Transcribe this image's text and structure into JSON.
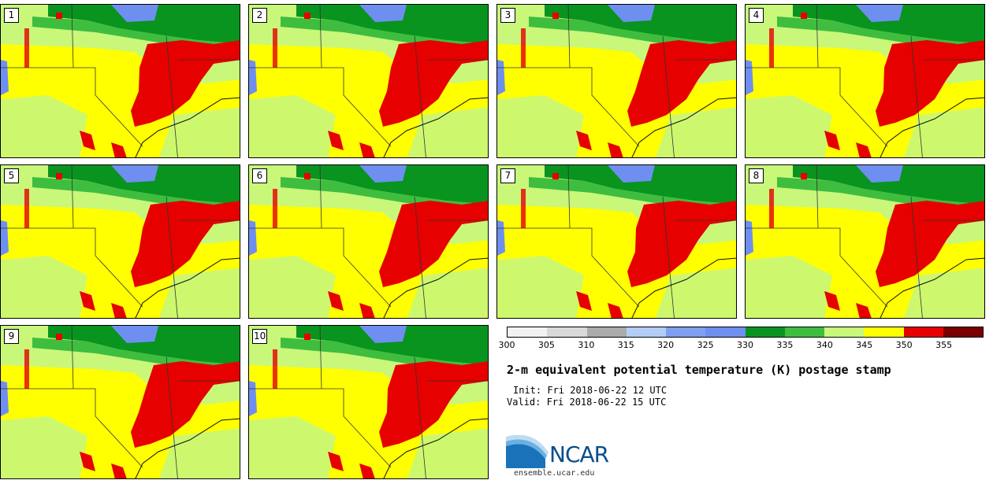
{
  "panels": [
    {
      "label": "1"
    },
    {
      "label": "2"
    },
    {
      "label": "3"
    },
    {
      "label": "4"
    },
    {
      "label": "5"
    },
    {
      "label": "6"
    },
    {
      "label": "7"
    },
    {
      "label": "8"
    },
    {
      "label": "9"
    },
    {
      "label": "10"
    }
  ],
  "colorbar": {
    "colors": [
      "#f2f2f2",
      "#d9d9d9",
      "#ababab",
      "#b4cdf7",
      "#7fa0ef",
      "#6f8ff0",
      "#08941f",
      "#3fbd3f",
      "#c8f77a",
      "#ffff00",
      "#e60000",
      "#7a0000"
    ],
    "ticks": [
      "300",
      "305",
      "310",
      "315",
      "320",
      "325",
      "330",
      "335",
      "340",
      "345",
      "350",
      "355"
    ]
  },
  "title": "2-m equivalent potential temperature (K) postage stamp",
  "init": "Init: Fri 2018-06-22 12 UTC",
  "valid": "Valid: Fri 2018-06-22 15 UTC",
  "logo_text": "NCAR",
  "url": "ensemble.ucar.edu",
  "legend_colors": {
    "light_green": "#c8f77a",
    "yellow": "#ffff00",
    "red": "#e60000",
    "green": "#08941f",
    "mid_green": "#3fbd3f",
    "blue": "#6f8ff0"
  }
}
